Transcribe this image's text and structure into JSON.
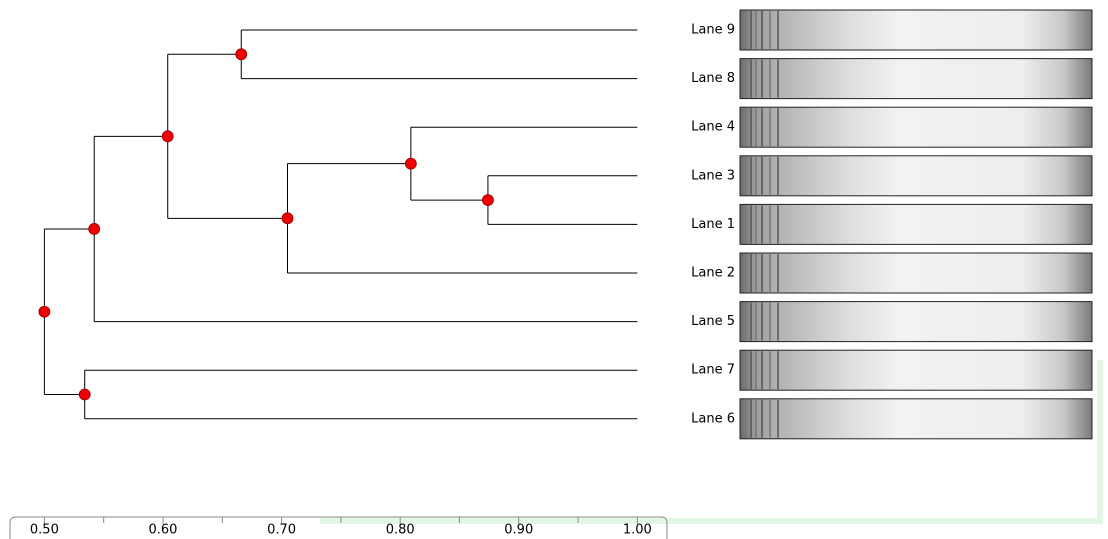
{
  "chart_data": {
    "type": "dendrogram",
    "tree": {
      "value": 0.5,
      "children": [
        {
          "value": 0.542,
          "children": [
            {
              "value": 0.604,
              "children": [
                {
                  "value": 0.666,
                  "children": [
                    {
                      "label": "Lane 9",
                      "value": 1.0
                    },
                    {
                      "label": "Lane 8",
                      "value": 1.0
                    }
                  ]
                },
                {
                  "value": 0.705,
                  "children": [
                    {
                      "value": 0.809,
                      "children": [
                        {
                          "label": "Lane 4",
                          "value": 1.0
                        },
                        {
                          "value": 0.874,
                          "children": [
                            {
                              "label": "Lane 3",
                              "value": 1.0
                            },
                            {
                              "label": "Lane 1",
                              "value": 1.0
                            }
                          ]
                        }
                      ]
                    },
                    {
                      "label": "Lane 2",
                      "value": 1.0
                    }
                  ]
                }
              ]
            },
            {
              "label": "Lane 5",
              "value": 1.0
            }
          ]
        },
        {
          "value": 0.534,
          "children": [
            {
              "label": "Lane 7",
              "value": 1.0
            },
            {
              "label": "Lane 6",
              "value": 1.0
            }
          ]
        }
      ]
    },
    "node_color": "#ee0000",
    "xlim": [
      0.471,
      1.025
    ],
    "xticks": [
      {
        "value": 0.5,
        "label": "0.50"
      },
      {
        "value": 0.6,
        "label": "0.60"
      },
      {
        "value": 0.7,
        "label": "0.70"
      },
      {
        "value": 0.8,
        "label": "0.80"
      },
      {
        "value": 0.9,
        "label": "0.90"
      },
      {
        "value": 1.0,
        "label": "1.00"
      }
    ],
    "xminorticks": [
      0.55,
      0.65,
      0.75,
      0.85,
      0.95
    ]
  }
}
